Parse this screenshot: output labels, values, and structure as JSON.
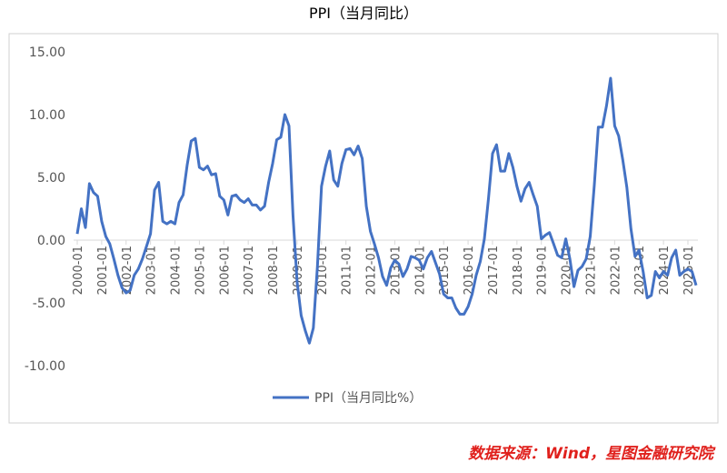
{
  "chart_data": {
    "type": "line",
    "title": "PPI（当月同比）",
    "source": "数据来源：Wind，星图金融研究院",
    "categories": [
      "2000-01",
      null,
      null,
      null,
      null,
      null,
      "2001-01",
      null,
      null,
      null,
      null,
      null,
      "2002-01",
      null,
      null,
      null,
      null,
      null,
      "2003-01",
      null,
      null,
      null,
      null,
      null,
      "2004-01",
      null,
      null,
      null,
      null,
      null,
      "2005-01",
      null,
      null,
      null,
      null,
      null,
      "2006-01",
      null,
      null,
      null,
      null,
      null,
      "2007-01",
      null,
      null,
      null,
      null,
      null,
      "2008-01",
      null,
      null,
      null,
      null,
      null,
      "2009-01",
      null,
      null,
      null,
      null,
      null,
      "2010-01",
      null,
      null,
      null,
      null,
      null,
      "2011-01",
      null,
      null,
      null,
      null,
      null,
      "2012-01",
      null,
      null,
      null,
      null,
      null,
      "2013-01",
      null,
      null,
      null,
      null,
      null,
      "2014-01",
      null,
      null,
      null,
      null,
      null,
      "2015-01",
      null,
      null,
      null,
      null,
      null,
      "2016-01",
      null,
      null,
      null,
      null,
      null,
      "2017-01",
      null,
      null,
      null,
      null,
      null,
      "2018-01",
      null,
      null,
      null,
      null,
      null,
      "2019-01",
      null,
      null,
      null,
      null,
      null,
      "2020-01",
      null,
      null,
      null,
      null,
      null,
      "2021-01",
      null,
      null,
      null,
      null,
      null,
      "2022-01",
      null,
      null,
      null,
      null,
      null,
      "2023-01",
      null,
      null,
      null,
      null,
      null,
      "2024-01",
      null,
      null,
      null,
      null,
      null,
      "2025-01",
      null,
      null
    ],
    "series": [
      {
        "name": "PPI（当月同比%）",
        "color": "#4472c4",
        "values": [
          0.5,
          2.5,
          1.0,
          4.5,
          3.8,
          3.5,
          1.5,
          0.3,
          -0.3,
          -1.5,
          -2.8,
          -3.8,
          -4.2,
          -4.0,
          -2.8,
          -2.3,
          -1.5,
          -0.5,
          0.5,
          4.0,
          4.6,
          1.5,
          1.3,
          1.5,
          1.3,
          3.0,
          3.6,
          6.0,
          7.9,
          8.1,
          5.8,
          5.6,
          5.9,
          5.2,
          5.3,
          3.5,
          3.2,
          2.0,
          3.5,
          3.6,
          3.2,
          3.0,
          3.3,
          2.8,
          2.8,
          2.4,
          2.7,
          4.6,
          6.1,
          8.0,
          8.2,
          10.0,
          9.1,
          2.0,
          -3.3,
          -6.0,
          -7.2,
          -8.2,
          -7.0,
          -2.1,
          4.3,
          5.9,
          7.1,
          4.8,
          4.3,
          6.1,
          7.2,
          7.3,
          6.8,
          7.5,
          6.5,
          2.7,
          0.7,
          -0.3,
          -1.4,
          -2.9,
          -3.6,
          -2.2,
          -1.6,
          -1.9,
          -2.9,
          -2.3,
          -1.3,
          -1.4,
          -1.6,
          -2.3,
          -1.4,
          -0.9,
          -1.8,
          -2.7,
          -4.3,
          -4.6,
          -4.6,
          -5.4,
          -5.9,
          -5.9,
          -5.3,
          -4.3,
          -2.8,
          -1.7,
          0.1,
          3.3,
          6.9,
          7.6,
          5.5,
          5.5,
          6.9,
          5.8,
          4.3,
          3.1,
          4.1,
          4.6,
          3.6,
          2.7,
          0.1,
          0.4,
          0.6,
          -0.3,
          -1.2,
          -1.4,
          0.1,
          -1.5,
          -3.7,
          -2.4,
          -2.1,
          -1.5,
          0.3,
          4.4,
          9.0,
          9.0,
          10.7,
          12.9,
          9.1,
          8.3,
          6.4,
          4.2,
          0.9,
          -1.3,
          -0.8,
          -2.5,
          -4.6,
          -4.4,
          -2.5,
          -3.0,
          -2.5,
          -2.8,
          -1.4,
          -0.8,
          -2.8,
          -2.5,
          -2.3,
          -2.5,
          -3.6
        ]
      }
    ],
    "ylim": [
      -10,
      15
    ],
    "yticks": [
      {
        "value": -10,
        "label": "-10.00"
      },
      {
        "value": -5,
        "label": "-5.00"
      },
      {
        "value": 0,
        "label": "0.00"
      },
      {
        "value": 5,
        "label": "5.00"
      },
      {
        "value": 10,
        "label": "10.00"
      },
      {
        "value": 15,
        "label": "15.00"
      }
    ],
    "grid": false
  }
}
